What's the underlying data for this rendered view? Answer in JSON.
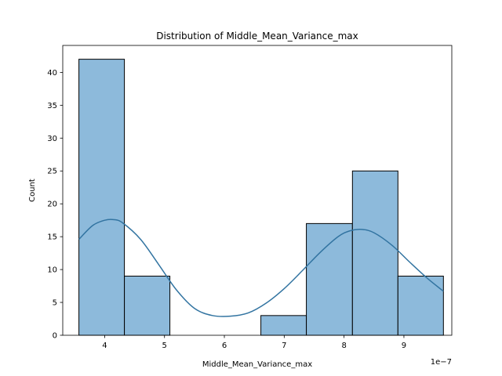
{
  "chart_data": {
    "type": "bar",
    "title": "Distribution of Middle_Mean_Variance_max",
    "xlabel": "Middle_Mean_Variance_max",
    "ylabel": "Count",
    "x_offset_label": "1e−7",
    "xlim": [
      3.3,
      9.8
    ],
    "ylim": [
      0,
      44.1
    ],
    "x_ticks": [
      4,
      5,
      6,
      7,
      8,
      9
    ],
    "y_ticks": [
      0,
      5,
      10,
      15,
      20,
      25,
      30,
      35,
      40
    ],
    "bins": [
      {
        "start": 3.57,
        "end": 4.33,
        "count": 42
      },
      {
        "start": 4.33,
        "end": 5.09,
        "count": 9
      },
      {
        "start": 5.09,
        "end": 5.85,
        "count": 0
      },
      {
        "start": 5.85,
        "end": 6.61,
        "count": 0
      },
      {
        "start": 6.61,
        "end": 7.37,
        "count": 3
      },
      {
        "start": 7.37,
        "end": 8.14,
        "count": 17
      },
      {
        "start": 8.14,
        "end": 8.9,
        "count": 25
      },
      {
        "start": 8.9,
        "end": 9.66,
        "count": 9
      }
    ],
    "kde": {
      "x": [
        3.57,
        3.8,
        4.0,
        4.15,
        4.3,
        4.6,
        4.9,
        5.2,
        5.5,
        5.8,
        6.1,
        6.4,
        6.7,
        7.0,
        7.3,
        7.6,
        7.9,
        8.1,
        8.3,
        8.5,
        8.8,
        9.1,
        9.4,
        9.66
      ],
      "y": [
        14.6,
        16.7,
        17.5,
        17.6,
        17.1,
        14.6,
        10.8,
        6.9,
        4.1,
        3.0,
        2.9,
        3.4,
        4.9,
        7.1,
        9.8,
        12.6,
        15.0,
        15.9,
        16.1,
        15.6,
        13.7,
        11.1,
        8.6,
        6.7
      ]
    },
    "bar_color": "#8dbadb",
    "bar_edge_color": "#000000",
    "kde_color": "#3274a1",
    "grid": false,
    "legend": "none"
  }
}
